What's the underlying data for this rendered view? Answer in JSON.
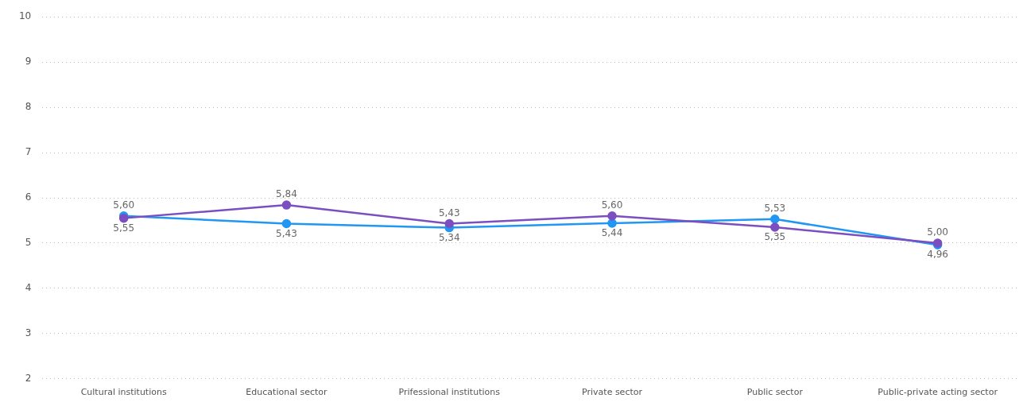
{
  "chart_data": {
    "type": "line",
    "categories": [
      "Cultural institutions",
      "Educational sector",
      "Prifessional institutions",
      "Private sector",
      "Public sector",
      "Public-private acting sector"
    ],
    "series": [
      {
        "color": "#7b4fc0",
        "values": [
          5.55,
          5.84,
          5.43,
          5.6,
          5.35,
          5.0
        ],
        "value_labels": [
          "5,55",
          "5,84",
          "5,43",
          "5,60",
          "5,35",
          "5,00"
        ]
      },
      {
        "color": "#2196f3",
        "values": [
          5.6,
          5.43,
          5.34,
          5.44,
          5.53,
          4.96
        ],
        "value_labels": [
          "5,60",
          "5,43",
          "5,34",
          "5,44",
          "5,53",
          "4,96"
        ]
      }
    ],
    "ylim": [
      2,
      10
    ],
    "yticks": [
      2,
      3,
      4,
      5,
      6,
      7,
      8,
      9,
      10
    ],
    "grid": "y",
    "marker": "circle",
    "line_style": "solid",
    "legend": false
  }
}
